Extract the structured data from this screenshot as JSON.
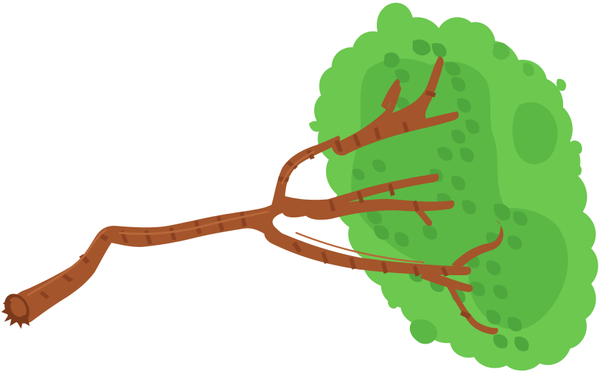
{
  "illustration": {
    "subject": "tree-icon",
    "colors": {
      "background": "#ffffff",
      "foliage_light": "#6cc84f",
      "foliage_mid": "#5bb845",
      "foliage_dark": "#4ea73d",
      "bark": "#a4552b",
      "bark_dark": "#7c3a1c",
      "bark_stripe": "#8c4222",
      "bark_highlight": "#b8673a"
    }
  }
}
